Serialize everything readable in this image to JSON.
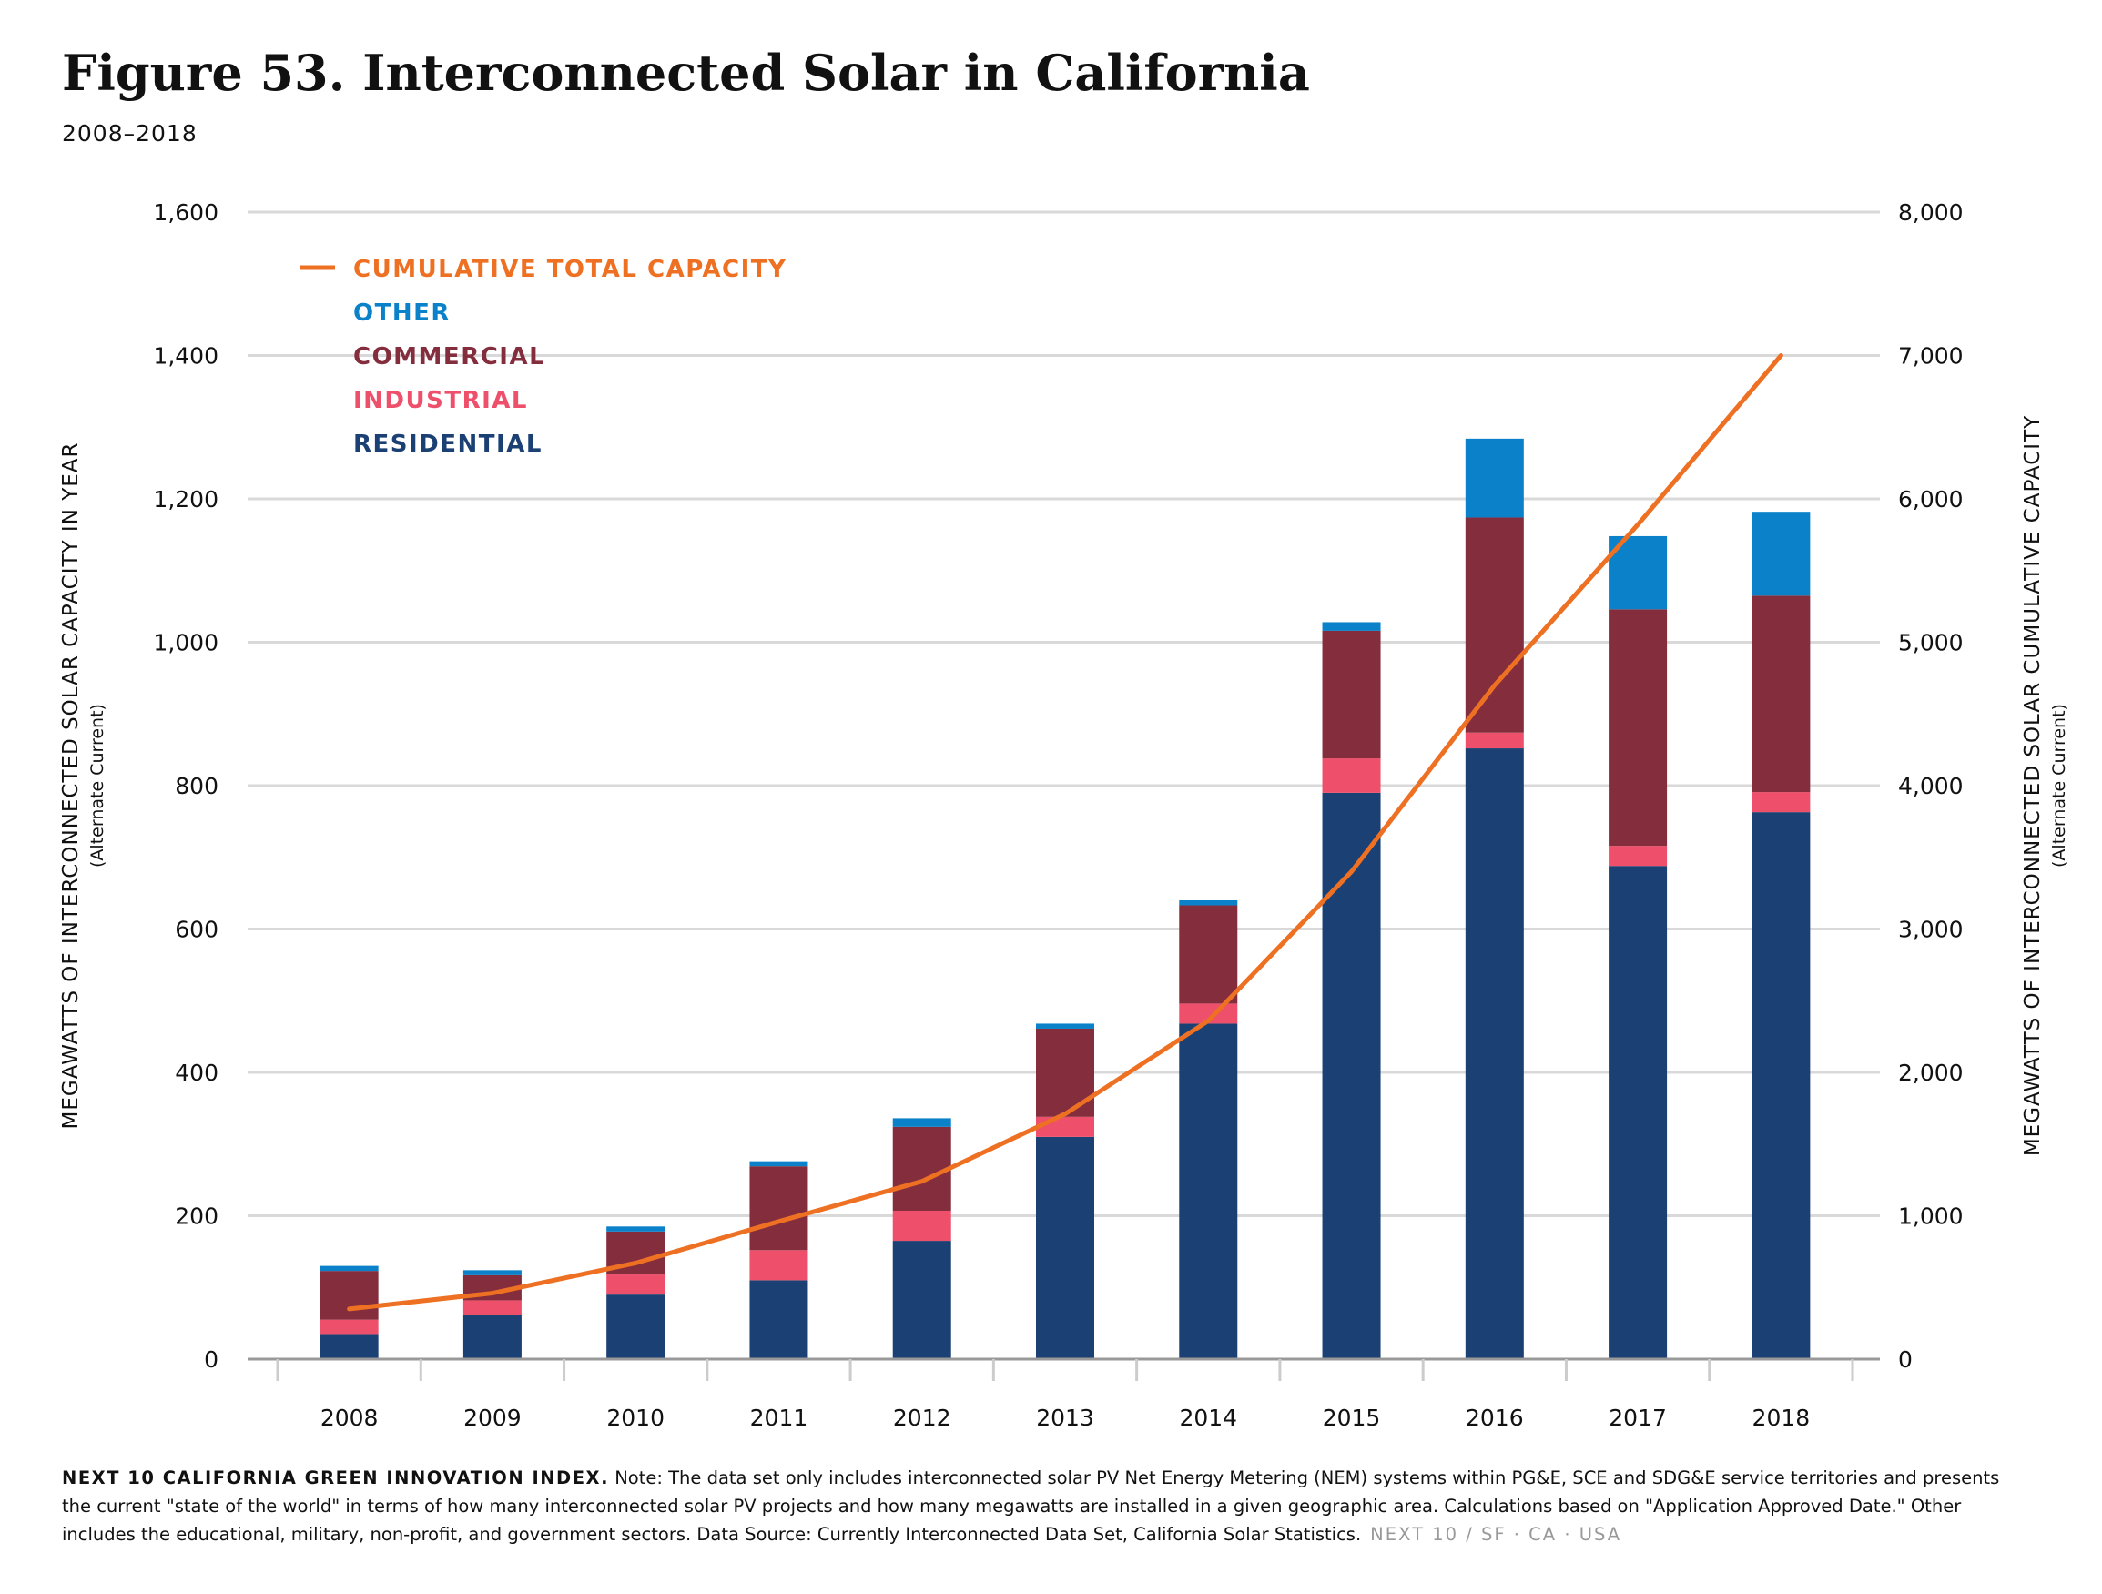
{
  "header": {
    "title": "Figure 53. Interconnected Solar in California",
    "subtitle": "2008–2018"
  },
  "colors": {
    "residential": "#1b4073",
    "industrial": "#ee4f6b",
    "commercial": "#842d3d",
    "other": "#0a81c9",
    "cumulative": "#ee7023",
    "grid": "#d9d9d9",
    "axis": "#999999"
  },
  "chart_data": {
    "type": "bar",
    "stacked": true,
    "categories": [
      "2008",
      "2009",
      "2010",
      "2011",
      "2012",
      "2013",
      "2014",
      "2015",
      "2016",
      "2017",
      "2018"
    ],
    "series": [
      {
        "name": "RESIDENTIAL",
        "axis": "left",
        "values": [
          35,
          62,
          90,
          110,
          165,
          310,
          468,
          790,
          852,
          688,
          763
        ]
      },
      {
        "name": "INDUSTRIAL",
        "axis": "left",
        "values": [
          20,
          20,
          28,
          42,
          42,
          28,
          28,
          48,
          22,
          28,
          28
        ]
      },
      {
        "name": "COMMERCIAL",
        "axis": "left",
        "values": [
          68,
          35,
          60,
          117,
          117,
          123,
          137,
          178,
          300,
          330,
          274
        ]
      },
      {
        "name": "OTHER",
        "axis": "left",
        "values": [
          7,
          7,
          7,
          7,
          12,
          7,
          7,
          12,
          110,
          102,
          117
        ]
      },
      {
        "name": "CUMULATIVE TOTAL CAPACITY",
        "type": "line",
        "axis": "right",
        "values": [
          350,
          460,
          670,
          960,
          1240,
          1710,
          2360,
          3400,
          4700,
          5820,
          7000
        ]
      }
    ],
    "legend": [
      "CUMULATIVE TOTAL CAPACITY",
      "OTHER",
      "COMMERCIAL",
      "INDUSTRIAL",
      "RESIDENTIAL"
    ],
    "legend_position": "top-left",
    "ylabel": "MEGAWATTS OF INTERCONNECTED SOLAR CAPACITY IN YEAR",
    "ylabel_sub": "(Alternate Current)",
    "y2label": "MEGAWATTS OF INTERCONNECTED SOLAR CUMULATIVE CAPACITY",
    "y2label_sub": "(Alternate Current)",
    "ylim": [
      0,
      1600
    ],
    "y2lim": [
      0,
      8000
    ],
    "yticks": [
      "0",
      "200",
      "400",
      "600",
      "800",
      "1,000",
      "1,200",
      "1,400",
      "1,600"
    ],
    "y2ticks": [
      "0",
      "1,000",
      "2,000",
      "3,000",
      "4,000",
      "5,000",
      "6,000",
      "7,000",
      "8,000"
    ],
    "grid": true
  },
  "footer": {
    "org": "NEXT 10 CALIFORNIA GREEN INNOVATION INDEX.",
    "note": "Note: The data set only includes interconnected solar PV Net Energy Metering (NEM) systems within PG&E, SCE and SDG&E service territories and presents the current \"state of the world\" in terms of how many interconnected solar PV projects and how many megawatts are installed in a given geographic area. Calculations based on \"Application Approved Date.\" Other includes the educational, military, non-profit, and government sectors. Data Source: Currently Interconnected Data Set, California Solar Statistics.",
    "brand": "NEXT 10  /  SF · CA · USA"
  }
}
